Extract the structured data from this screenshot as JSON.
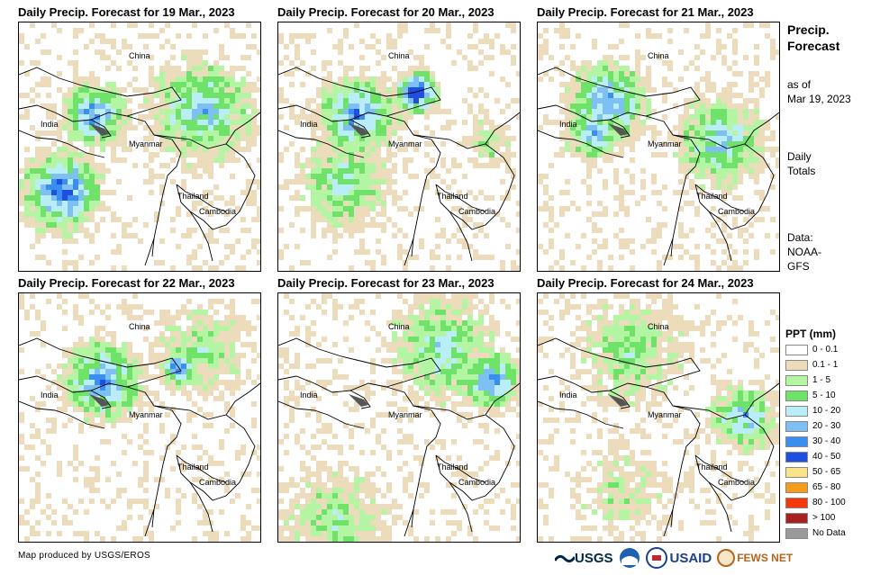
{
  "panels": [
    {
      "title": "Daily Precip. Forecast for 19 Mar., 2023"
    },
    {
      "title": "Daily Precip. Forecast for 20 Mar., 2023"
    },
    {
      "title": "Daily Precip. Forecast for 21 Mar., 2023"
    },
    {
      "title": "Daily Precip. Forecast for 22 Mar., 2023"
    },
    {
      "title": "Daily Precip. Forecast for 23 Mar., 2023"
    },
    {
      "title": "Daily Precip. Forecast for 24 Mar., 2023"
    }
  ],
  "map_labels": {
    "china": "China",
    "india": "India",
    "myanmar": "Myanmar",
    "thailand": "Thailand",
    "cambodia": "Cambodia"
  },
  "sidebar": {
    "heading_line1": "Precip.",
    "heading_line2": "Forecast",
    "asof_line1": "as of",
    "asof_line2": "Mar 19, 2023",
    "daily_line1": "Daily",
    "daily_line2": "Totals",
    "data_line1": "Data:",
    "data_line2": "NOAA-",
    "data_line3": "GFS"
  },
  "legend": {
    "title": "PPT (mm)",
    "items": [
      {
        "label": "0 - 0.1",
        "color": "#ffffff"
      },
      {
        "label": "0.1 - 1",
        "color": "#ecdcbc"
      },
      {
        "label": "1 - 5",
        "color": "#b4f5a4"
      },
      {
        "label": "5 - 10",
        "color": "#6fe26a"
      },
      {
        "label": "10 - 20",
        "color": "#b9eef8"
      },
      {
        "label": "20 - 30",
        "color": "#7fc0f4"
      },
      {
        "label": "30 - 40",
        "color": "#3a8ef0"
      },
      {
        "label": "40 - 50",
        "color": "#1e4fe0"
      },
      {
        "label": "50 - 65",
        "color": "#fbe38a"
      },
      {
        "label": "65 - 80",
        "color": "#f59c18"
      },
      {
        "label": "80 - 100",
        "color": "#f2390e"
      },
      {
        "label": "> 100",
        "color": "#a82020"
      },
      {
        "label": "No Data",
        "color": "#9a9a9a"
      }
    ]
  },
  "credit": "Map produced by USGS/EROS",
  "logos": {
    "usgs": "USGS",
    "usaid": "USAID",
    "fewsnet": "FEWS NET"
  }
}
